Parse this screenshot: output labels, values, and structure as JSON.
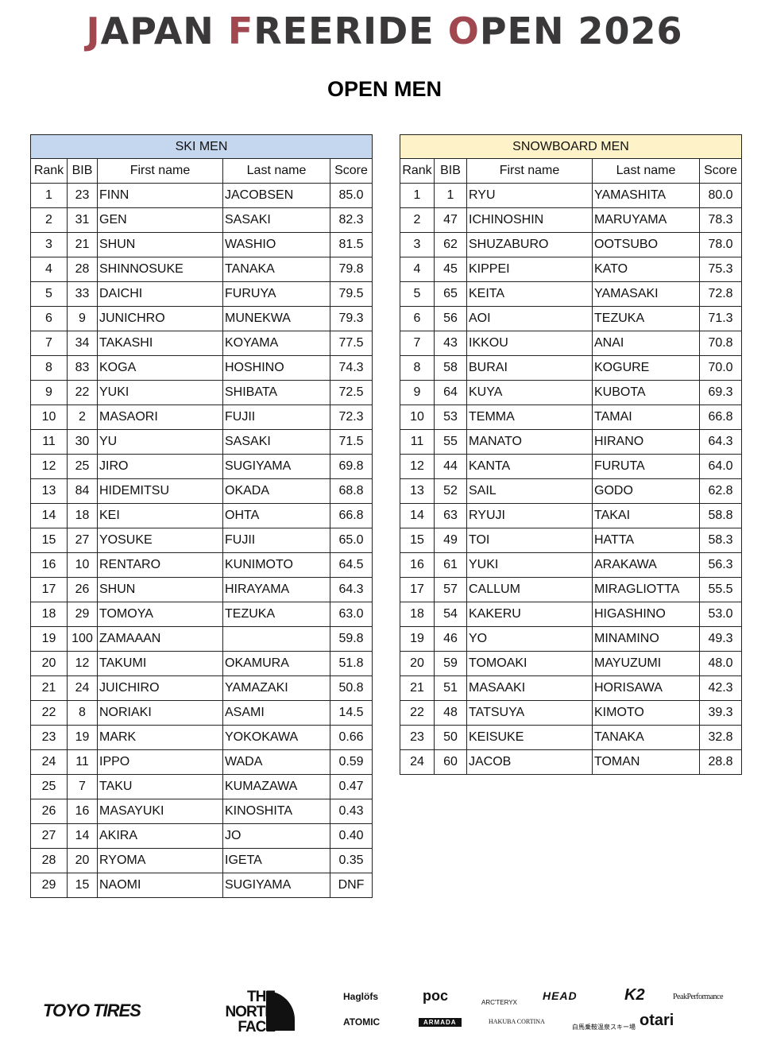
{
  "header": {
    "title_parts": [
      {
        "t": "J",
        "accent": true
      },
      {
        "t": "APAN ",
        "accent": false
      },
      {
        "t": "F",
        "accent": true
      },
      {
        "t": "REERIDE ",
        "accent": false
      },
      {
        "t": "O",
        "accent": true
      },
      {
        "t": "PEN 2026",
        "accent": false
      }
    ],
    "subtitle": "OPEN  MEN",
    "accent_color": "#a0474f"
  },
  "columns": [
    "Rank",
    "BIB",
    "First name",
    "Last name",
    "Score"
  ],
  "ski": {
    "title": "SKI MEN",
    "rows": [
      [
        "1",
        "23",
        "FINN",
        "JACOBSEN",
        "85.0"
      ],
      [
        "2",
        "31",
        "GEN",
        "SASAKI",
        "82.3"
      ],
      [
        "3",
        "21",
        "SHUN",
        "WASHIO",
        "81.5"
      ],
      [
        "4",
        "28",
        "SHINNOSUKE",
        "TANAKA",
        "79.8"
      ],
      [
        "5",
        "33",
        "DAICHI",
        "FURUYA",
        "79.5"
      ],
      [
        "6",
        "9",
        "JUNICHRO",
        "MUNEKWA",
        "79.3"
      ],
      [
        "7",
        "34",
        "TAKASHI",
        "KOYAMA",
        "77.5"
      ],
      [
        "8",
        "83",
        "KOGA",
        "HOSHINO",
        "74.3"
      ],
      [
        "9",
        "22",
        "YUKI",
        "SHIBATA",
        "72.5"
      ],
      [
        "10",
        "2",
        "MASAORI",
        "FUJII",
        "72.3"
      ],
      [
        "11",
        "30",
        "YU",
        "SASAKI",
        "71.5"
      ],
      [
        "12",
        "25",
        "JIRO",
        "SUGIYAMA",
        "69.8"
      ],
      [
        "13",
        "84",
        "HIDEMITSU",
        "OKADA",
        "68.8"
      ],
      [
        "14",
        "18",
        "KEI",
        "OHTA",
        "66.8"
      ],
      [
        "15",
        "27",
        "YOSUKE",
        "FUJII",
        "65.0"
      ],
      [
        "16",
        "10",
        "RENTARO",
        "KUNIMOTO",
        "64.5"
      ],
      [
        "17",
        "26",
        "SHUN",
        "HIRAYAMA",
        "64.3"
      ],
      [
        "18",
        "29",
        "TOMOYA",
        "TEZUKA",
        "63.0"
      ],
      [
        "19",
        "100",
        "ZAMAAAN",
        "",
        "59.8"
      ],
      [
        "20",
        "12",
        "TAKUMI",
        "OKAMURA",
        "51.8"
      ],
      [
        "21",
        "24",
        "JUICHIRO",
        "YAMAZAKI",
        "50.8"
      ],
      [
        "22",
        "8",
        "NORIAKI",
        "ASAMI",
        "14.5"
      ],
      [
        "23",
        "19",
        "MARK",
        "YOKOKAWA",
        "0.66"
      ],
      [
        "24",
        "11",
        "IPPO",
        "WADA",
        "0.59"
      ],
      [
        "25",
        "7",
        "TAKU",
        "KUMAZAWA",
        "0.47"
      ],
      [
        "26",
        "16",
        "MASAYUKI",
        "KINOSHITA",
        "0.43"
      ],
      [
        "27",
        "14",
        "AKIRA",
        "JO",
        "0.40"
      ],
      [
        "28",
        "20",
        "RYOMA",
        "IGETA",
        "0.35"
      ],
      [
        "29",
        "15",
        "NAOMI",
        "SUGIYAMA",
        "DNF"
      ]
    ]
  },
  "snowboard": {
    "title": "SNOWBOARD MEN",
    "rows": [
      [
        "1",
        "1",
        "RYU",
        "YAMASHITA",
        "80.0"
      ],
      [
        "2",
        "47",
        "ICHINOSHIN",
        "MARUYAMA",
        "78.3"
      ],
      [
        "3",
        "62",
        "SHUZABURO",
        "OOTSUBO",
        "78.0"
      ],
      [
        "4",
        "45",
        "KIPPEI",
        "KATO",
        "75.3"
      ],
      [
        "5",
        "65",
        "KEITA",
        "YAMASAKI",
        "72.8"
      ],
      [
        "6",
        "56",
        "AOI",
        "TEZUKA",
        "71.3"
      ],
      [
        "7",
        "43",
        "IKKOU",
        "ANAI",
        "70.8"
      ],
      [
        "8",
        "58",
        "BURAI",
        "KOGURE",
        "70.0"
      ],
      [
        "9",
        "64",
        "KUYA",
        "KUBOTA",
        "69.3"
      ],
      [
        "10",
        "53",
        "TEMMA",
        "TAMAI",
        "66.8"
      ],
      [
        "11",
        "55",
        "MANATO",
        "HIRANO",
        "64.3"
      ],
      [
        "12",
        "44",
        "KANTA",
        "FURUTA",
        "64.0"
      ],
      [
        "13",
        "52",
        "SAIL",
        "GODO",
        "62.8"
      ],
      [
        "14",
        "63",
        "RYUJI",
        "TAKAI",
        "58.8"
      ],
      [
        "15",
        "49",
        "TOI",
        "HATTA",
        "58.3"
      ],
      [
        "16",
        "61",
        "YUKI",
        "ARAKAWA",
        "56.3"
      ],
      [
        "17",
        "57",
        "CALLUM",
        "MIRAGLIOTTA",
        "55.5"
      ],
      [
        "18",
        "54",
        "KAKERU",
        "HIGASHINO",
        "53.0"
      ],
      [
        "19",
        "46",
        "YO",
        "MINAMINO",
        "49.3"
      ],
      [
        "20",
        "59",
        "TOMOAKI",
        "MAYUZUMI",
        "48.0"
      ],
      [
        "21",
        "51",
        "MASAAKI",
        "HORISAWA",
        "42.3"
      ],
      [
        "22",
        "48",
        "TATSUYA",
        "KIMOTO",
        "39.3"
      ],
      [
        "23",
        "50",
        "KEISUKE",
        "TANAKA",
        "32.8"
      ],
      [
        "24",
        "60",
        "JACOB",
        "TOMAN",
        "28.8"
      ]
    ]
  },
  "sponsors": [
    "TOYO TIRES",
    "THE NORTH FACE",
    "Haglöfs",
    "POC",
    "ARC'TERYX",
    "HEAD",
    "K2",
    "PeakPerformance",
    "ATOMIC",
    "ARMADA",
    "HAKUBA CORTINA",
    "白馬乗鞍温泉スキー場",
    "otari"
  ]
}
